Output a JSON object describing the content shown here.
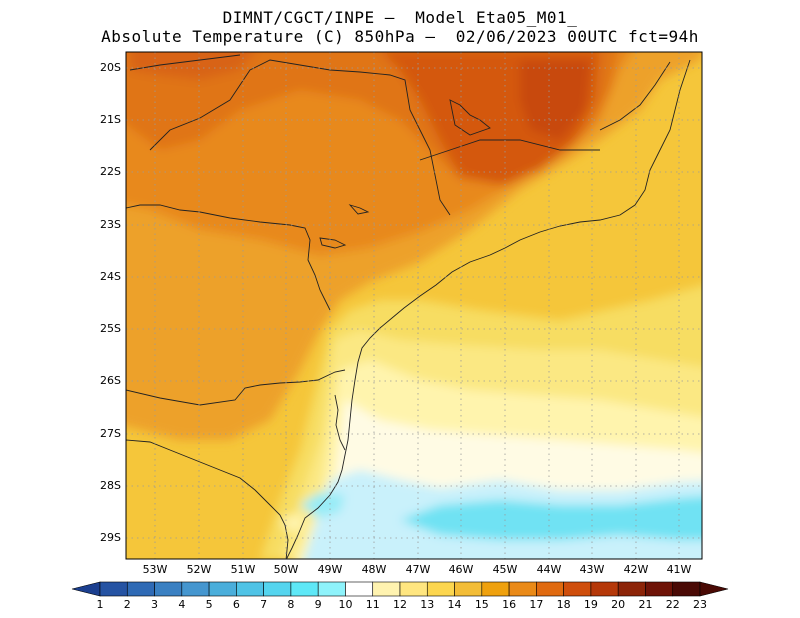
{
  "header": {
    "line1": "DIMNT/CGCT/INPE —  Model Eta05_M01_",
    "line2": "Absolute Temperature (C) 850hPa —  02/06/2023 00UTC fct=94h"
  },
  "map": {
    "lat_labels": [
      "20S",
      "21S",
      "22S",
      "23S",
      "24S",
      "25S",
      "26S",
      "27S",
      "28S",
      "29S"
    ],
    "lon_labels": [
      "53W",
      "52W",
      "51W",
      "50W",
      "49W",
      "48W",
      "47W",
      "46W",
      "45W",
      "44W",
      "43W",
      "42W",
      "41W"
    ]
  },
  "colorbar": {
    "labels": [
      "1",
      "2",
      "3",
      "4",
      "5",
      "6",
      "7",
      "8",
      "9",
      "10",
      "11",
      "12",
      "13",
      "14",
      "15",
      "16",
      "17",
      "18",
      "19",
      "20",
      "21",
      "22",
      "23"
    ],
    "colors": [
      "#1b3f8f",
      "#2553a3",
      "#2f6ab5",
      "#3a80c2",
      "#4596cf",
      "#4aaedb",
      "#4fc3e6",
      "#55d5ef",
      "#5ee8f7",
      "#8ef3fb",
      "#ffffff",
      "#fff3b0",
      "#ffe680",
      "#fcd64f",
      "#f3bd37",
      "#efa10e",
      "#ea8a18",
      "#e06a10",
      "#cf4e0c",
      "#b53809",
      "#8c2408",
      "#6e1307",
      "#4a0a05"
    ],
    "end_left": "#1b3f8f",
    "end_right": "#4a0a05"
  }
}
